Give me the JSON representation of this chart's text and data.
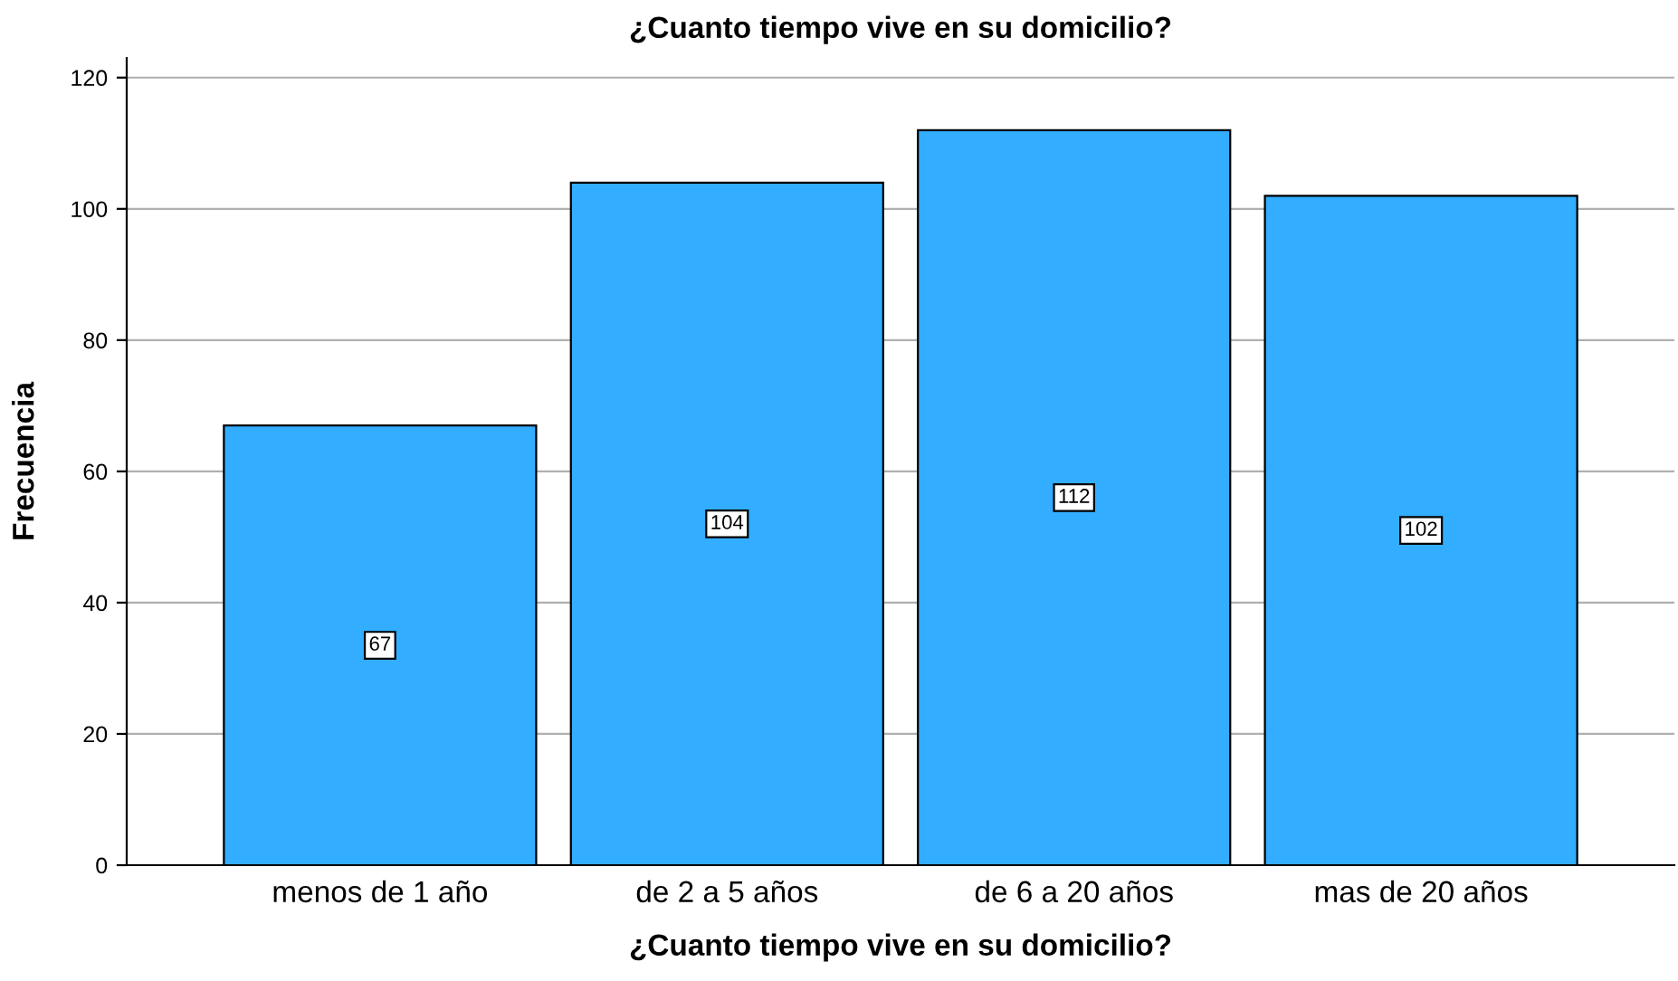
{
  "chart_data": {
    "type": "bar",
    "title": "¿Cuanto tiempo vive en su domicilio?",
    "xlabel": "¿Cuanto tiempo vive en su domicilio?",
    "ylabel": "Frecuencia",
    "categories": [
      "menos de 1 año",
      "de 2 a 5 años",
      "de 6 a 20 años",
      "mas de 20 años"
    ],
    "values": [
      67,
      104,
      112,
      102
    ],
    "color": "#33adff",
    "ylim": [
      0,
      123
    ],
    "yticks": [
      0,
      20,
      40,
      60,
      80,
      100,
      120
    ],
    "grid": "y",
    "data_labels": true
  }
}
